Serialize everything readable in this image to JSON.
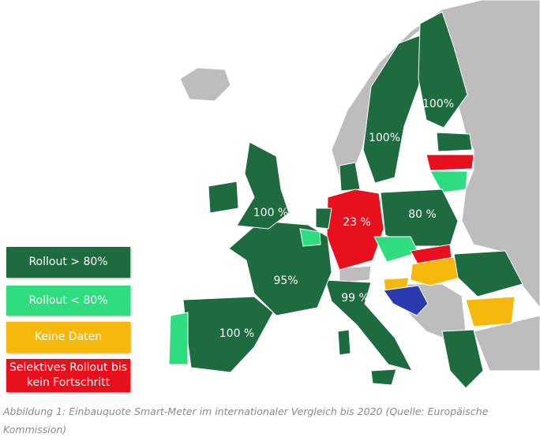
{
  "map": {
    "region_labels": [
      "100%",
      "100%",
      "100 %",
      "80 %",
      "23 %",
      "95%",
      "99 %",
      "100 %"
    ]
  },
  "legend": [
    {
      "label": "Rollout > 80%",
      "color": "#1d6b3f"
    },
    {
      "label": "Rollout < 80%",
      "color": "#2fdc7f"
    },
    {
      "label": "Keine Daten",
      "color": "#f5b80c"
    },
    {
      "label": "Selektives Rollout bis kein Fortschritt",
      "color": "#e8101c"
    }
  ],
  "caption": "Abbildung 1: Einbauquote Smart-Meter im internationaler Vergleich bis 2020 (Quelle: Europäische Kommission)"
}
